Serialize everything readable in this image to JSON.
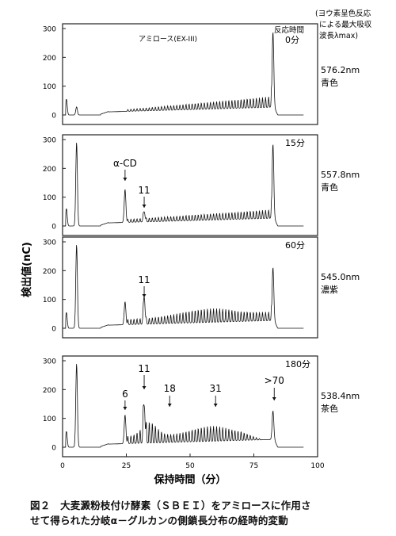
{
  "chart_data": {
    "type": "line",
    "xlabel": "保持時間（分）",
    "ylabel": "検出値(nC)",
    "xlim": [
      0,
      100
    ],
    "ylim": [
      0,
      300
    ],
    "x_ticks": [
      "0",
      "25",
      "50",
      "75",
      "100"
    ],
    "y_ticks": [
      "0",
      "100",
      "200",
      "300"
    ],
    "sample_label": "アミロース(EX-III)",
    "right_header": [
      "(ヨウ素呈色反応",
      "による最大吸収",
      "波長λmax)"
    ],
    "panels": [
      {
        "time_label": "反応時間",
        "time": "0分",
        "wavelength": "576.2nm",
        "color_word": "青色",
        "annotations": [],
        "peaks": [
          {
            "x": 1.5,
            "y": 55
          },
          {
            "x": 5.5,
            "y": 28
          },
          {
            "x": 82.5,
            "y": 262
          }
        ]
      },
      {
        "time_label": "",
        "time": "15分",
        "wavelength": "557.8nm",
        "color_word": "青色",
        "annotations": [
          "α-CD",
          "11"
        ],
        "peaks": [
          {
            "x": 1.5,
            "y": 60
          },
          {
            "x": 5.5,
            "y": 290
          },
          {
            "x": 24.5,
            "y": 115
          },
          {
            "x": 32,
            "y": 35
          },
          {
            "x": 82.5,
            "y": 258
          }
        ]
      },
      {
        "time_label": "",
        "time": "60分",
        "wavelength": "545.0nm",
        "color_word": "濃紫",
        "annotations": [
          "11"
        ],
        "peaks": [
          {
            "x": 1.5,
            "y": 55
          },
          {
            "x": 5.5,
            "y": 290
          },
          {
            "x": 24.5,
            "y": 80
          },
          {
            "x": 32,
            "y": 95
          },
          {
            "x": 82.5,
            "y": 185
          }
        ]
      },
      {
        "time_label": "",
        "time": "180分",
        "wavelength": "538.4nm",
        "color_word": "茶色",
        "annotations": [
          "6",
          "11",
          "18",
          "31",
          ">70"
        ],
        "peaks": [
          {
            "x": 1.5,
            "y": 55
          },
          {
            "x": 5.5,
            "y": 290
          },
          {
            "x": 24.5,
            "y": 100
          },
          {
            "x": 32,
            "y": 130
          },
          {
            "x": 82.5,
            "y": 100
          }
        ]
      }
    ]
  },
  "caption": {
    "line1": "図２　大麦澱粉枝付け酵素（ＳＢＥＩ）をアミロースに作用さ",
    "line2": "せて得られた分岐α－グルカンの側鎖長分布の経時的変動"
  }
}
